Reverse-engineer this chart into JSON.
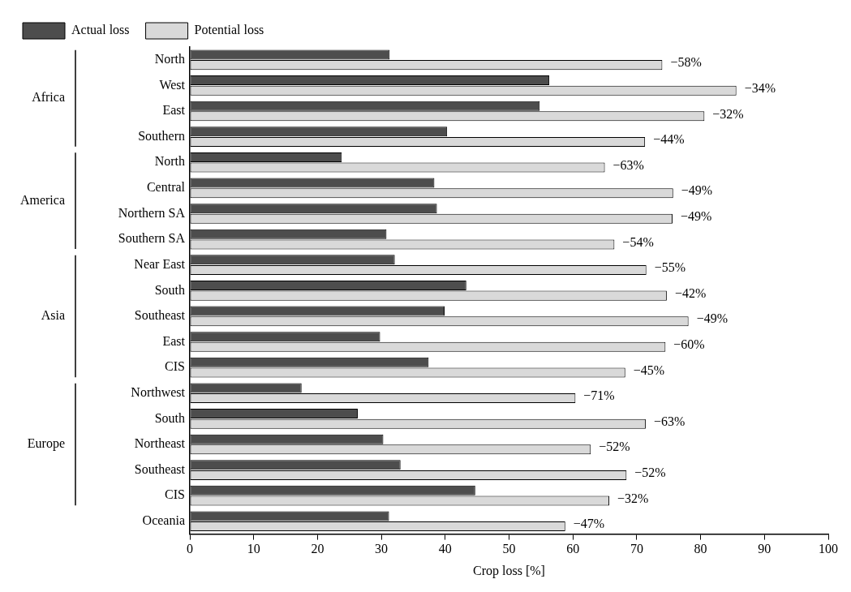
{
  "chart_data": {
    "type": "bar",
    "orientation": "horizontal",
    "xlabel": "Crop loss [%]",
    "categories": [
      "North",
      "West",
      "East",
      "Southern",
      "North",
      "Central",
      "Northern SA",
      "Southern SA",
      "Near East",
      "South",
      "Southeast",
      "East",
      "CIS",
      "Northwest",
      "South",
      "Northeast",
      "Southeast",
      "CIS",
      "Oceania"
    ],
    "series": [
      {
        "name": "Actual loss",
        "color": "#4d4d4d",
        "values": [
          31.3,
          56.3,
          54.8,
          40.3,
          23.8,
          38.3,
          38.7,
          30.8,
          32.1,
          43.3,
          39.9,
          29.8,
          37.4,
          17.5,
          26.3,
          30.3,
          33.0,
          44.7,
          31.2
        ]
      },
      {
        "name": "Potential loss",
        "color": "#d9d9d9",
        "values": [
          74.0,
          85.6,
          80.6,
          71.3,
          65.0,
          75.7,
          75.6,
          66.5,
          71.5,
          74.7,
          78.1,
          74.5,
          68.2,
          60.4,
          71.4,
          62.8,
          68.4,
          65.7,
          58.8
        ]
      }
    ],
    "annotations": [
      "Africa",
      "America",
      "Asia",
      "Europe",
      "−58%",
      "−34%",
      "−32%",
      "−44%",
      "−63%",
      "−49%",
      "−49%",
      "−54%",
      "−55%",
      "−42%",
      "−49%",
      "−60%",
      "−45%",
      "−71%",
      "−63%",
      "−52%",
      "−52%",
      "−32%",
      "−47%"
    ],
    "xlim": [
      0,
      100
    ],
    "xticks": [
      0,
      10,
      20,
      30,
      40,
      50,
      60,
      70,
      80,
      90,
      100
    ],
    "grid": false,
    "legend": "top"
  }
}
